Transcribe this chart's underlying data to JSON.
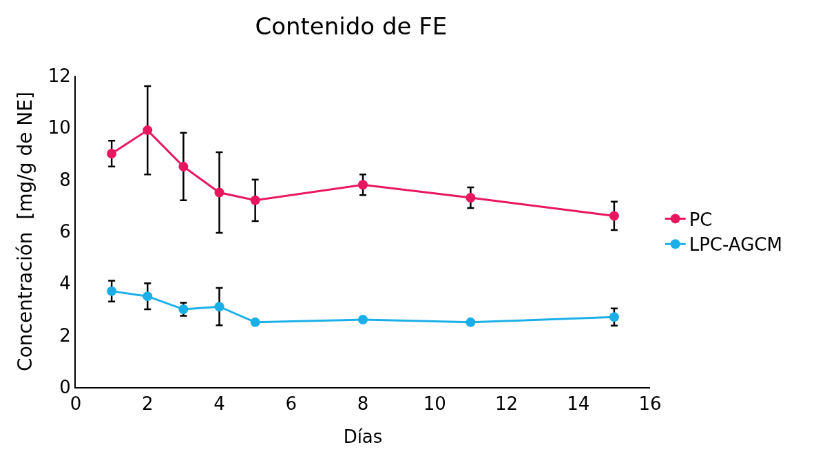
{
  "chart_data": {
    "type": "line",
    "title": "Contenido de FE",
    "xlabel": "Días",
    "ylabel": "Concentración  [mg/g de NE]",
    "x": [
      1,
      2,
      3,
      4,
      5,
      8,
      11,
      15
    ],
    "series": [
      {
        "name": "PC",
        "color": "#e8175d",
        "values": [
          9.0,
          9.9,
          8.5,
          7.5,
          7.2,
          7.8,
          7.3,
          6.6
        ],
        "errors": [
          0.5,
          1.7,
          1.3,
          1.55,
          0.8,
          0.4,
          0.4,
          0.55
        ]
      },
      {
        "name": "LPC-AGCM",
        "color": "#1aafe6",
        "values": [
          3.7,
          3.5,
          3.0,
          3.1,
          2.5,
          2.6,
          2.5,
          2.7
        ],
        "errors": [
          0.4,
          0.5,
          0.25,
          0.72,
          null,
          null,
          null,
          0.33
        ]
      }
    ],
    "xlim": [
      0,
      16
    ],
    "xticks": [
      0,
      2,
      4,
      6,
      8,
      10,
      12,
      14,
      16
    ],
    "ylim": [
      0,
      12
    ],
    "yticks": [
      0,
      2,
      4,
      6,
      8,
      10,
      12
    ],
    "legend": "right",
    "marker": "circle",
    "line_style": "solid"
  }
}
